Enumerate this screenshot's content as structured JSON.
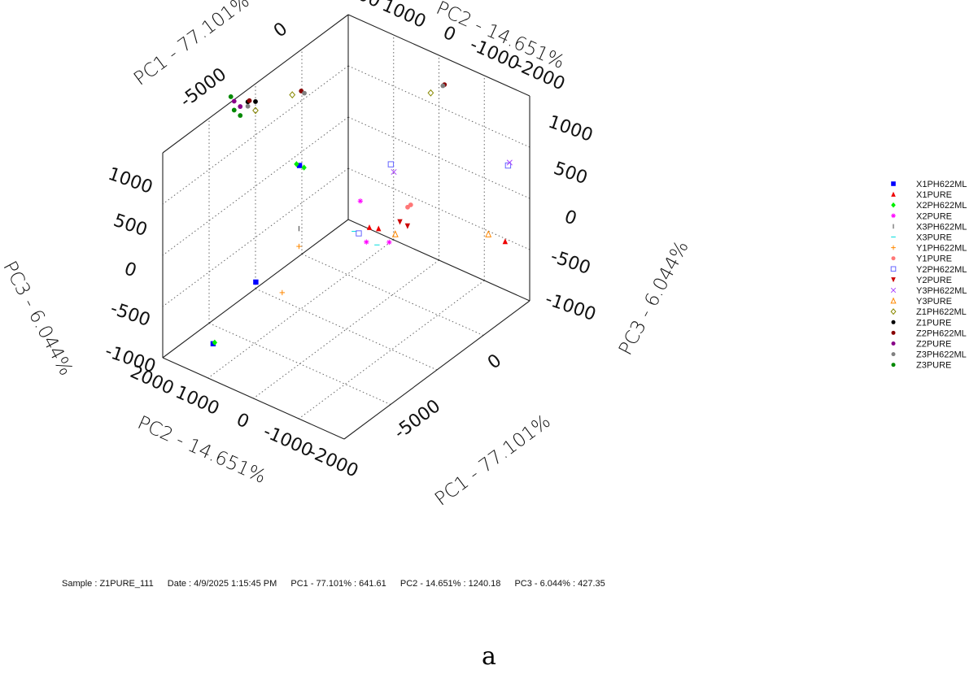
{
  "chart_data": {
    "type": "scatter",
    "projection": "3d",
    "grid": true,
    "legend_position": "right",
    "axes": {
      "pc1": {
        "label": "PC1 - 77.101%",
        "ticks": [
          "-5000",
          "0"
        ],
        "range": [
          -9000,
          3000
        ]
      },
      "pc2": {
        "label": "PC2 - 14.651%",
        "ticks": [
          "2000",
          "1000",
          "0",
          "-1000",
          "-2000"
        ],
        "range": [
          -2000,
          2000
        ]
      },
      "pc3": {
        "label": "PC3 - 6.044%",
        "ticks": [
          "-1000",
          "-500",
          "0",
          "500",
          "1000"
        ],
        "range": [
          -1000,
          1300
        ]
      }
    },
    "series": [
      {
        "name": "X1PH622ML",
        "color": "#0000ff",
        "marker": "square",
        "points": [
          [
            -7500,
            1400,
            -900
          ],
          [
            -6500,
            800,
            -200
          ],
          [
            -2500,
            1200,
            500
          ]
        ]
      },
      {
        "name": "X1PURE",
        "color": "#ee0000",
        "marker": "triangle",
        "points": [
          [
            -1500,
            0,
            -50
          ],
          [
            -1200,
            -100,
            -80
          ],
          [
            2000,
            -1800,
            -250
          ]
        ]
      },
      {
        "name": "X2PH622ML",
        "color": "#00ee00",
        "marker": "diamond",
        "points": [
          [
            -7400,
            1400,
            -900
          ],
          [
            -2500,
            1100,
            500
          ],
          [
            -2400,
            1300,
            480
          ]
        ]
      },
      {
        "name": "X2PURE",
        "color": "#ff00ff",
        "marker": "asterisk",
        "points": [
          [
            -1400,
            100,
            -250
          ],
          [
            -1500,
            200,
            200
          ],
          [
            -1100,
            -300,
            -200
          ]
        ]
      },
      {
        "name": "X3PH622ML",
        "color": "#444444",
        "marker": "tick",
        "points": [
          [
            -4000,
            700,
            100
          ]
        ]
      },
      {
        "name": "X3PURE",
        "color": "#00dddd",
        "marker": "dash",
        "points": [
          [
            -1600,
            300,
            -150
          ],
          [
            -1300,
            -100,
            -250
          ]
        ]
      },
      {
        "name": "Y1PH622ML",
        "color": "#ff8800",
        "marker": "plus",
        "points": [
          [
            -4500,
            900,
            -600
          ],
          [
            -4000,
            700,
            -100
          ]
        ]
      },
      {
        "name": "Y1PURE",
        "color": "#ff7777",
        "marker": "circle",
        "points": [
          [
            -200,
            -400,
            100
          ],
          [
            0,
            -400,
            100
          ]
        ]
      },
      {
        "name": "Y2PH622ML",
        "color": "#6666ff",
        "marker": "open-square",
        "points": [
          [
            -1600,
            200,
            -150
          ],
          [
            -700,
            -200,
            600
          ],
          [
            1600,
            -2000,
            700
          ]
        ]
      },
      {
        "name": "Y2PURE",
        "color": "#cc0000",
        "marker": "down-triangle",
        "points": [
          [
            -700,
            -400,
            0
          ],
          [
            -500,
            -500,
            -50
          ]
        ]
      },
      {
        "name": "Y3PH622ML",
        "color": "#aa44ff",
        "marker": "cross",
        "points": [
          [
            -800,
            -300,
            550
          ],
          [
            1700,
            -2000,
            720
          ]
        ]
      },
      {
        "name": "Y3PURE",
        "color": "#ff8800",
        "marker": "open-triangle",
        "points": [
          [
            -1000,
            -400,
            -100
          ],
          [
            1500,
            -1600,
            -150
          ]
        ]
      },
      {
        "name": "Z1PH622ML",
        "color": "#888800",
        "marker": "open-diamond",
        "points": [
          [
            -3000,
            2000,
            1000
          ],
          [
            -1500,
            1700,
            1050
          ],
          [
            1000,
            -500,
            1250
          ]
        ]
      },
      {
        "name": "Z1PURE",
        "color": "#000000",
        "marker": "circle",
        "points": [
          [
            -3200,
            2100,
            1100
          ],
          [
            -3000,
            2000,
            1100
          ]
        ]
      },
      {
        "name": "Z2PH622ML",
        "color": "#880000",
        "marker": "circle",
        "points": [
          [
            -3100,
            2100,
            1100
          ],
          [
            -1800,
            1400,
            1200
          ],
          [
            1300,
            -700,
            1350
          ]
        ]
      },
      {
        "name": "Z2PURE",
        "color": "#880088",
        "marker": "circle",
        "points": [
          [
            -3500,
            2300,
            1100
          ],
          [
            -3400,
            2200,
            1050
          ]
        ]
      },
      {
        "name": "Z3PH622ML",
        "color": "#808080",
        "marker": "circle",
        "points": [
          [
            -3200,
            2100,
            1050
          ],
          [
            -1600,
            1400,
            1150
          ],
          [
            1200,
            -700,
            1350
          ]
        ]
      },
      {
        "name": "Z3PURE",
        "color": "#008800",
        "marker": "circle",
        "points": [
          [
            -4300,
            2100,
            1300
          ],
          [
            -3500,
            2300,
            1000
          ],
          [
            -3400,
            2200,
            950
          ]
        ]
      }
    ]
  },
  "status": {
    "sample": "Sample : Z1PURE_111",
    "date": "Date : 4/9/2025 1:15:45 PM",
    "pc1": "PC1 - 77.101% : 641.61",
    "pc2": "PC2 - 14.651% : 1240.18",
    "pc3": "PC3 - 6.044% : 427.35"
  },
  "caption": "a"
}
